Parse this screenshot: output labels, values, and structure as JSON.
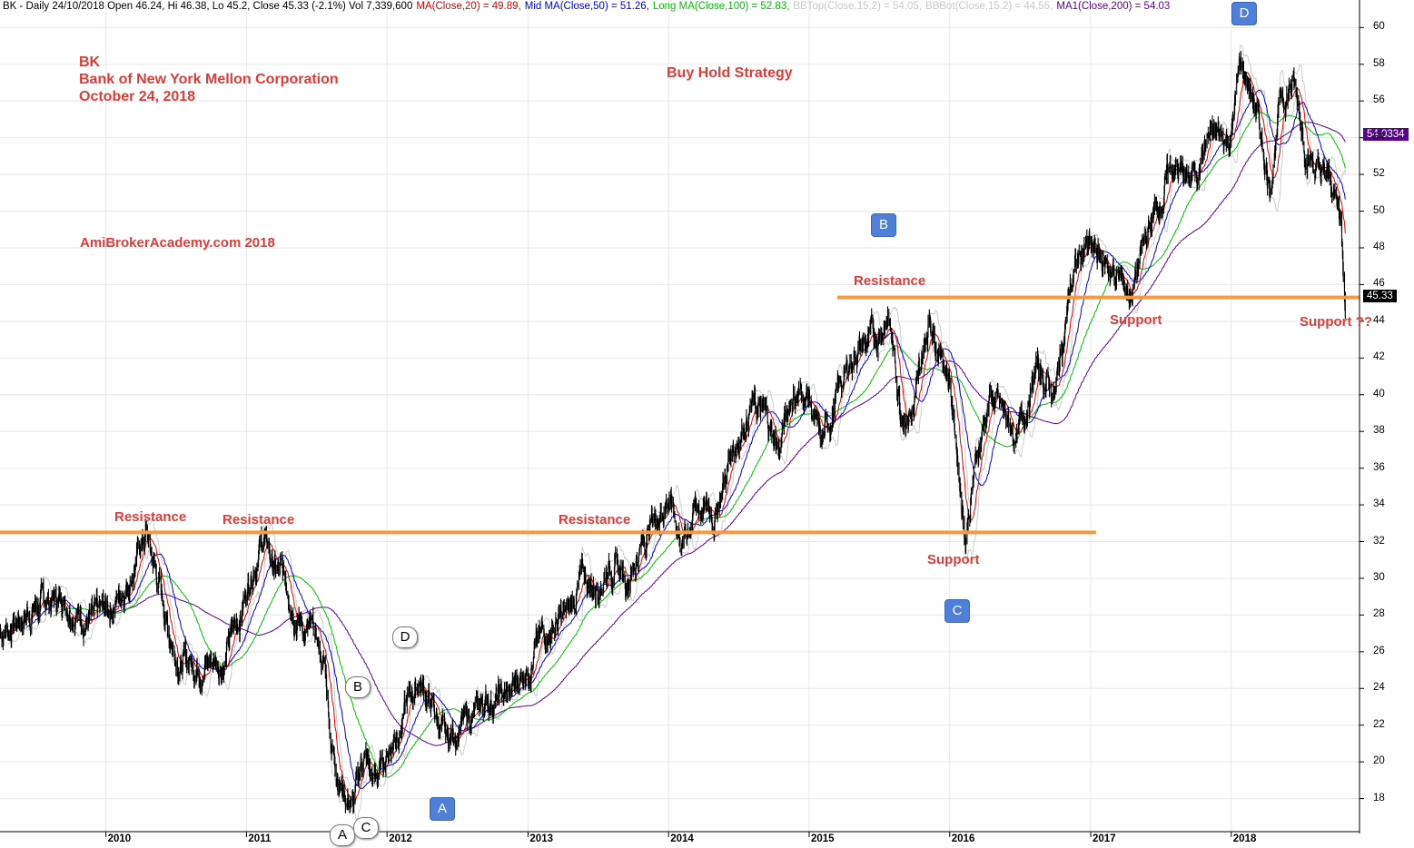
{
  "header": {
    "symbol_line": "BK - Daily 24/10/2018 Open 46.24, Hi 46.38, Lo 45.2, Close 45.33 (-2.1%) Vol 7,339,600",
    "ma20": "MA(Close,20) = 49.89,",
    "ma50": "Mid MA(Close,50) = 51.26,",
    "ma100": "Long MA(Close,100) = 52.83,",
    "bbtop": "BBTop(Close,15,2) = 54.05,",
    "bbbot": "BBBot(Close,15,2) = 44.55,",
    "ma200": "MA1(Close,200) = 54.03"
  },
  "annotations": {
    "ticker": "BK",
    "company": "Bank of New York Mellon Corporation",
    "date": "October 24, 2018",
    "strategy": "Buy Hold Strategy",
    "website": "AmiBrokerAcademy.com  2018",
    "resistance": "Resistance",
    "support": "Support",
    "support_q": "Support ??"
  },
  "markers": {
    "A": "A",
    "B": "B",
    "C": "C",
    "D": "D"
  },
  "colors": {
    "ma20": "#e00000",
    "ma50": "#0000e0",
    "ma100": "#00c000",
    "ma200": "#5a0090",
    "band": "#cccccc",
    "price": "#000000",
    "level_line": "#f59a40",
    "note_text": "#e03b36",
    "tag_blue": "#4f7fd8"
  },
  "price_labels": {
    "ma200_value": "54.0334",
    "close_value": "45.33"
  },
  "chart_data": {
    "type": "line",
    "title": "BK - Daily",
    "x_axis": {
      "type": "date",
      "ticks": [
        "2010",
        "2011",
        "2012",
        "2013",
        "2014",
        "2015",
        "2016",
        "2017",
        "2018"
      ],
      "range": [
        "2009-04-01",
        "2018-11-30"
      ]
    },
    "y_axis": {
      "ticks": [
        18,
        20,
        22,
        24,
        26,
        28,
        30,
        32,
        34,
        36,
        38,
        40,
        42,
        44,
        46,
        48,
        50,
        52,
        54,
        56,
        58,
        60
      ],
      "range": [
        16.2,
        61.5
      ],
      "position": "right"
    },
    "grid": true,
    "series": [
      {
        "name": "BK",
        "style": "price bars",
        "points": [
          [
            "2009-04-01",
            27
          ],
          [
            "2009-07-01",
            28.5
          ],
          [
            "2009-09-15",
            29
          ],
          [
            "2009-12-01",
            27.5
          ],
          [
            "2010-01-15",
            28.5
          ],
          [
            "2010-03-01",
            30
          ],
          [
            "2010-04-15",
            32.5
          ],
          [
            "2010-05-15",
            30
          ],
          [
            "2010-06-15",
            27
          ],
          [
            "2010-07-15",
            25.5
          ],
          [
            "2010-09-01",
            25.5
          ],
          [
            "2010-11-01",
            25.5
          ],
          [
            "2010-12-15",
            28
          ],
          [
            "2011-01-20",
            31
          ],
          [
            "2011-02-15",
            32.2
          ],
          [
            "2011-03-15",
            30.5
          ],
          [
            "2011-04-20",
            29.5
          ],
          [
            "2011-05-25",
            27.5
          ],
          [
            "2011-07-01",
            26.5
          ],
          [
            "2011-07-25",
            25
          ],
          [
            "2011-08-10",
            21
          ],
          [
            "2011-09-10",
            18.5
          ],
          [
            "2011-10-05",
            17.5
          ],
          [
            "2011-11-01",
            20.5
          ],
          [
            "2011-11-25",
            18.8
          ],
          [
            "2011-12-20",
            19.8
          ],
          [
            "2012-01-20",
            21.5
          ],
          [
            "2012-02-20",
            23
          ],
          [
            "2012-03-25",
            24.5
          ],
          [
            "2012-05-01",
            22.8
          ],
          [
            "2012-06-01",
            21
          ],
          [
            "2012-07-01",
            21.8
          ],
          [
            "2012-08-15",
            22.5
          ],
          [
            "2012-09-20",
            23.5
          ],
          [
            "2012-11-15",
            23.5
          ],
          [
            "2012-12-31",
            25.5
          ],
          [
            "2013-02-15",
            27
          ],
          [
            "2013-04-15",
            28
          ],
          [
            "2013-05-20",
            30
          ],
          [
            "2013-06-25",
            29.5
          ],
          [
            "2013-08-01",
            31
          ],
          [
            "2013-09-15",
            30
          ],
          [
            "2013-11-15",
            33
          ],
          [
            "2014-01-01",
            34.5
          ],
          [
            "2014-02-05",
            32
          ],
          [
            "2014-03-15",
            34
          ],
          [
            "2014-05-01",
            33.5
          ],
          [
            "2014-06-15",
            37
          ],
          [
            "2014-08-01",
            39.5
          ],
          [
            "2014-09-15",
            38.5
          ],
          [
            "2014-10-15",
            37
          ],
          [
            "2014-11-15",
            40
          ],
          [
            "2014-12-31",
            40
          ],
          [
            "2015-02-01",
            37
          ],
          [
            "2015-03-15",
            40
          ],
          [
            "2015-05-01",
            42.5
          ],
          [
            "2015-06-20",
            43
          ],
          [
            "2015-07-25",
            44.5
          ],
          [
            "2015-08-25",
            39.5
          ],
          [
            "2015-09-30",
            39
          ],
          [
            "2015-11-10",
            44.5
          ],
          [
            "2015-12-31",
            41
          ],
          [
            "2016-02-11",
            32.5
          ],
          [
            "2016-03-15",
            37
          ],
          [
            "2016-04-15",
            40
          ],
          [
            "2016-06-24",
            37.5
          ],
          [
            "2016-08-15",
            41.5
          ],
          [
            "2016-10-01",
            40
          ],
          [
            "2016-11-10",
            46
          ],
          [
            "2016-12-15",
            48
          ],
          [
            "2017-02-15",
            47
          ],
          [
            "2017-04-15",
            45.5
          ],
          [
            "2017-06-01",
            49
          ],
          [
            "2017-08-01",
            52.5
          ],
          [
            "2017-09-15",
            51.5
          ],
          [
            "2017-11-01",
            54
          ],
          [
            "2017-12-31",
            54
          ],
          [
            "2018-01-25",
            58
          ],
          [
            "2018-03-01",
            56
          ],
          [
            "2018-04-10",
            51.5
          ],
          [
            "2018-05-10",
            56
          ],
          [
            "2018-06-10",
            57
          ],
          [
            "2018-07-15",
            53.5
          ],
          [
            "2018-08-15",
            52
          ],
          [
            "2018-09-15",
            51.5
          ],
          [
            "2018-10-10",
            50
          ],
          [
            "2018-10-24",
            45.33
          ]
        ]
      },
      {
        "name": "MA(Close,20)",
        "value_last": 49.89
      },
      {
        "name": "Mid MA(Close,50)",
        "value_last": 51.26
      },
      {
        "name": "Long MA(Close,100)",
        "value_last": 52.83
      },
      {
        "name": "MA1(Close,200)",
        "value_last": 54.03
      }
    ],
    "levels": [
      {
        "value": 32.5,
        "from": "2009-04-01",
        "to": "2017-01-15"
      },
      {
        "value": 45.3,
        "from": "2015-03-15",
        "to": "2018-11-30"
      }
    ]
  }
}
